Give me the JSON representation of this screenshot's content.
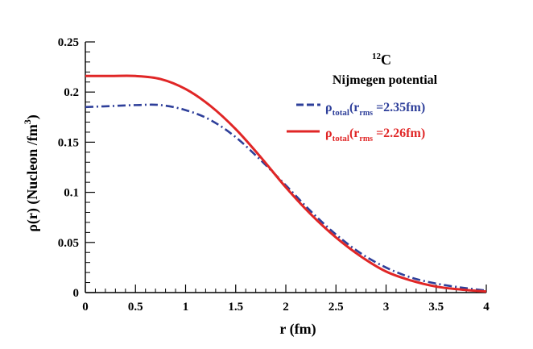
{
  "chart_data": {
    "type": "line",
    "title": "",
    "annotation": {
      "nucleus_mass": "12",
      "nucleus_symbol": "C",
      "potential": "Nijmegen potential"
    },
    "xlabel": "r (fm)",
    "ylabel_main": "ρ(r) (Nucleon /fm",
    "ylabel_sup": "3",
    "ylabel_close": ")",
    "xlim": [
      0,
      4
    ],
    "ylim": [
      0,
      0.25
    ],
    "x_ticks": [
      0,
      0.5,
      1,
      1.5,
      2,
      2.5,
      3,
      3.5,
      4
    ],
    "x_tick_labels": [
      "0",
      "0.5",
      "1",
      "1.5",
      "2",
      "2.5",
      "3",
      "3.5",
      "4"
    ],
    "y_ticks": [
      0,
      0.05,
      0.1,
      0.15,
      0.2,
      0.25
    ],
    "y_tick_labels": [
      "0",
      "0.05",
      "0.1",
      "0.15",
      "0.2",
      "0.25"
    ],
    "series": [
      {
        "name": "ρtotal(rrms =2.35fm)",
        "legend_rho": "ρ",
        "legend_sub_total": "total",
        "legend_paren": "(r",
        "legend_sub_rms": "rms",
        "legend_value": " =2.35fm)",
        "color": "#2e3f9a",
        "style": "dash-dot",
        "x": [
          0,
          0.25,
          0.5,
          0.75,
          1.0,
          1.25,
          1.5,
          1.75,
          2.0,
          2.25,
          2.5,
          2.75,
          3.0,
          3.25,
          3.5,
          3.75,
          4.0
        ],
        "y": [
          0.185,
          0.186,
          0.187,
          0.187,
          0.182,
          0.172,
          0.155,
          0.132,
          0.107,
          0.081,
          0.058,
          0.039,
          0.025,
          0.015,
          0.009,
          0.005,
          0.002
        ]
      },
      {
        "name": "ρtotal(rrms =2.26fm)",
        "legend_rho": "ρ",
        "legend_sub_total": "total",
        "legend_paren": "(r",
        "legend_sub_rms": "rms",
        "legend_value": " =2.26fm)",
        "color": "#e02626",
        "style": "solid",
        "x": [
          0,
          0.25,
          0.5,
          0.75,
          1.0,
          1.25,
          1.5,
          1.75,
          2.0,
          2.25,
          2.5,
          2.75,
          3.0,
          3.25,
          3.5,
          3.75,
          4.0
        ],
        "y": [
          0.216,
          0.216,
          0.216,
          0.213,
          0.203,
          0.186,
          0.163,
          0.135,
          0.105,
          0.078,
          0.055,
          0.036,
          0.021,
          0.012,
          0.006,
          0.003,
          0.001
        ]
      }
    ]
  }
}
